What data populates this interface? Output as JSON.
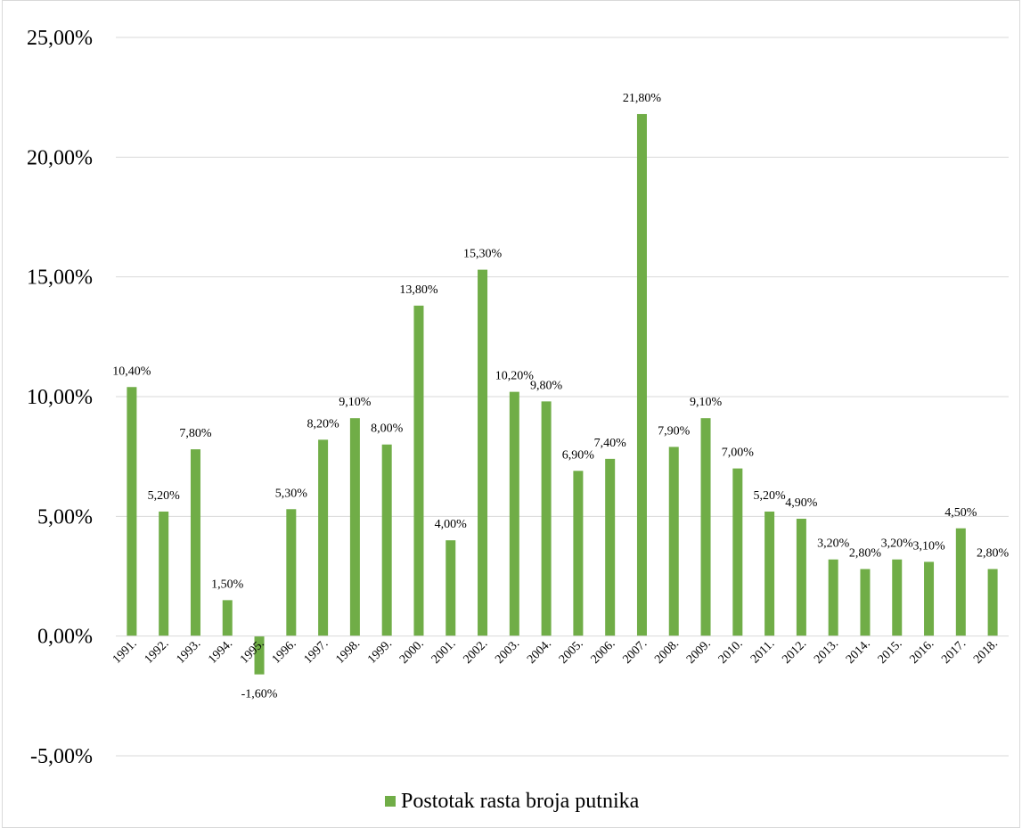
{
  "chart_data": {
    "type": "bar",
    "title": "",
    "xlabel": "",
    "ylabel": "",
    "ylim": [
      -5,
      25
    ],
    "yticks": [
      -5,
      0,
      5,
      10,
      15,
      20,
      25
    ],
    "ytick_labels": [
      "-5,00%",
      "0,00%",
      "5,00%",
      "10,00%",
      "15,00%",
      "20,00%",
      "25,00%"
    ],
    "grid": true,
    "legend_position": "bottom",
    "color": "#70ad47",
    "categories": [
      "1991.",
      "1992.",
      "1993.",
      "1994.",
      "1995.",
      "1996.",
      "1997.",
      "1998.",
      "1999.",
      "2000.",
      "2001.",
      "2002.",
      "2003.",
      "2004.",
      "2005.",
      "2006.",
      "2007.",
      "2008.",
      "2009.",
      "2010.",
      "2011.",
      "2012.",
      "2013.",
      "2014.",
      "2015.",
      "2016.",
      "2017.",
      "2018."
    ],
    "series": [
      {
        "name": "Postotak rasta broja putnika",
        "values": [
          10.4,
          5.2,
          7.8,
          1.5,
          -1.6,
          5.3,
          8.2,
          9.1,
          8.0,
          13.8,
          4.0,
          15.3,
          10.2,
          9.8,
          6.9,
          7.4,
          21.8,
          7.9,
          9.1,
          7.0,
          5.2,
          4.9,
          3.2,
          2.8,
          3.2,
          3.1,
          4.5,
          2.8
        ],
        "labels": [
          "10,40%",
          "5,20%",
          "7,80%",
          "1,50%",
          "-1,60%",
          "5,30%",
          "8,20%",
          "9,10%",
          "8,00%",
          "13,80%",
          "4,00%",
          "15,30%",
          "10,20%",
          "9,80%",
          "6,90%",
          "7,40%",
          "21,80%",
          "7,90%",
          "9,10%",
          "7,00%",
          "5,20%",
          "4,90%",
          "3,20%",
          "2,80%",
          "3,20%",
          "3,10%",
          "4,50%",
          "2,80%"
        ]
      }
    ]
  }
}
